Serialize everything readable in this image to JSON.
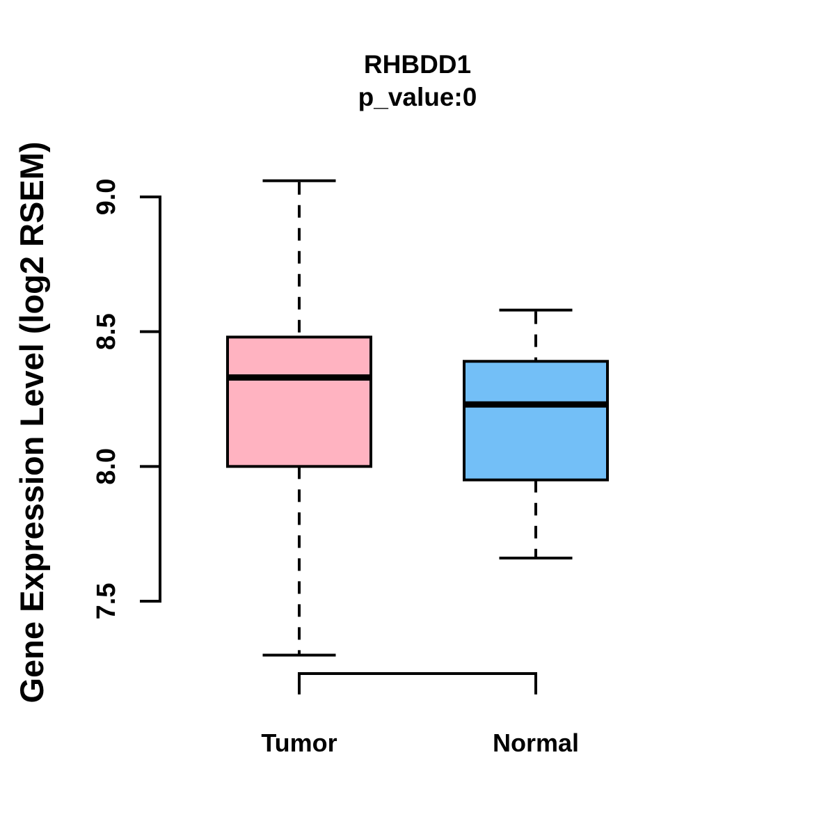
{
  "chart_data": {
    "type": "boxplot",
    "title": "RHBDD1",
    "subtitle": "p_value:0",
    "ylabel": "Gene Expression Level (log2 RSEM)",
    "xlabel": "",
    "ylim": [
      7.5,
      9.0
    ],
    "yticks": [
      "7.5",
      "8.0",
      "8.5",
      "9.0"
    ],
    "grid": false,
    "legend": "none",
    "background_color": "#FFFFFF",
    "line_color": "#000000",
    "categories": [
      "Tumor",
      "Normal"
    ],
    "series": [
      {
        "name": "Tumor",
        "color": "#FFB3C1",
        "whisker_low": 7.3,
        "q1": 8.0,
        "median": 8.33,
        "q3": 8.48,
        "whisker_high": 9.06
      },
      {
        "name": "Normal",
        "color": "#73BFF7",
        "whisker_low": 7.66,
        "q1": 7.95,
        "median": 8.23,
        "q3": 8.39,
        "whisker_high": 8.58
      }
    ]
  }
}
